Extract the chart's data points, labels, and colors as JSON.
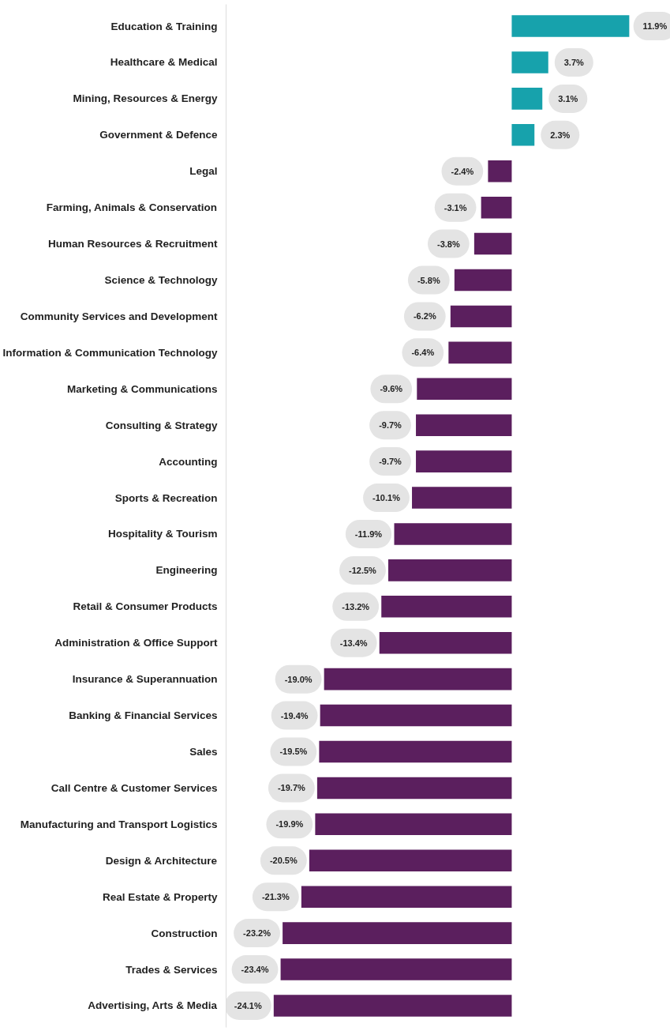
{
  "chart_data": {
    "type": "bar",
    "orientation": "horizontal",
    "data_labels": true,
    "tick_labels": "y",
    "grid": false,
    "categories": [
      "Education & Training",
      "Healthcare & Medical",
      "Mining, Resources & Energy",
      "Government & Defence",
      "Legal",
      "Farming, Animals & Conservation",
      "Human Resources & Recruitment",
      "Science & Technology",
      "Community Services and Development",
      "Information & Communication Technology",
      "Marketing & Communications",
      "Consulting & Strategy",
      "Accounting",
      "Sports & Recreation",
      "Hospitality & Tourism",
      "Engineering",
      "Retail & Consumer Products",
      "Administration & Office Support",
      "Insurance & Superannuation",
      "Banking & Financial Services",
      "Sales",
      "Call Centre & Customer Services",
      "Manufacturing and Transport Logistics",
      "Design & Architecture",
      "Real Estate & Property",
      "Construction",
      "Trades & Services",
      "Advertising, Arts & Media"
    ],
    "values": [
      11.9,
      3.7,
      3.1,
      2.3,
      -2.4,
      -3.1,
      -3.8,
      -5.8,
      -6.2,
      -6.4,
      -9.6,
      -9.7,
      -9.7,
      -10.1,
      -11.9,
      -12.5,
      -13.2,
      -13.4,
      -19.0,
      -19.4,
      -19.5,
      -19.7,
      -19.9,
      -20.5,
      -21.3,
      -23.2,
      -23.4,
      -24.1
    ],
    "value_labels": [
      "11.9%",
      "3.7%",
      "3.1%",
      "2.3%",
      "-2.4%",
      "-3.1%",
      "-3.8%",
      "-5.8%",
      "-6.2%",
      "-6.4%",
      "-9.6%",
      "-9.7%",
      "-9.7%",
      "-10.1%",
      "-11.9%",
      "-12.5%",
      "-13.2%",
      "-13.4%",
      "-19.0%",
      "-19.4%",
      "-19.5%",
      "-19.7%",
      "-19.9%",
      "-20.5%",
      "-21.3%",
      "-23.2%",
      "-23.4%",
      "-24.1%"
    ],
    "colors": [
      "#17a2ac",
      "#17a2ac",
      "#17a2ac",
      "#17a2ac",
      "#5b1f5e",
      "#5b1f5e",
      "#5b1f5e",
      "#5b1f5e",
      "#5b1f5e",
      "#5b1f5e",
      "#5b1f5e",
      "#5b1f5e",
      "#5b1f5e",
      "#5b1f5e",
      "#5b1f5e",
      "#5b1f5e",
      "#5b1f5e",
      "#5b1f5e",
      "#5b1f5e",
      "#5b1f5e",
      "#5b1f5e",
      "#5b1f5e",
      "#5b1f5e",
      "#5b1f5e",
      "#5b1f5e",
      "#5b1f5e",
      "#5b1f5e",
      "#5b1f5e"
    ]
  }
}
